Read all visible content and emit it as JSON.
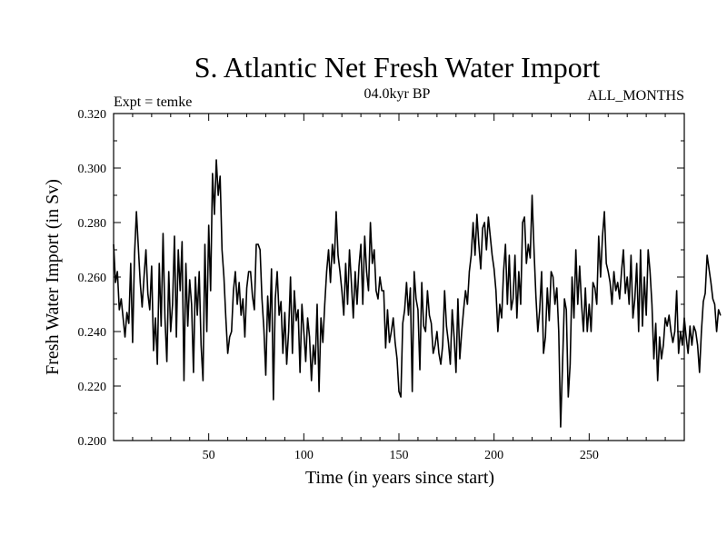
{
  "chart_data": {
    "type": "line",
    "title": "S. Atlantic Net Fresh Water Import",
    "subtitle_left": "Expt = temke",
    "subtitle_center": "04.0kyr BP",
    "subtitle_right": "ALL_MONTHS",
    "xlabel": "Time (in years since start)",
    "ylabel": "Fresh Water Import (in Sv)",
    "xlim": [
      0,
      300
    ],
    "ylim": [
      0.2,
      0.32
    ],
    "x_ticks": [
      50,
      100,
      150,
      200,
      250
    ],
    "x_tick_labels": [
      "50",
      "100",
      "150",
      "200",
      "250"
    ],
    "y_ticks": [
      0.2,
      0.22,
      0.24,
      0.26,
      0.28,
      0.3,
      0.32
    ],
    "y_tick_labels": [
      "0.200",
      "0.220",
      "0.240",
      "0.260",
      "0.280",
      "0.300",
      "0.320"
    ],
    "series": [
      {
        "name": "Fresh Water Import",
        "x_start": 0,
        "x_step": 1,
        "values": [
          0.272,
          0.258,
          0.262,
          0.248,
          0.252,
          0.245,
          0.238,
          0.247,
          0.243,
          0.265,
          0.236,
          0.268,
          0.284,
          0.271,
          0.258,
          0.249,
          0.26,
          0.27,
          0.254,
          0.248,
          0.264,
          0.233,
          0.245,
          0.228,
          0.265,
          0.242,
          0.276,
          0.245,
          0.229,
          0.262,
          0.24,
          0.25,
          0.275,
          0.238,
          0.27,
          0.255,
          0.273,
          0.222,
          0.265,
          0.242,
          0.259,
          0.25,
          0.225,
          0.26,
          0.246,
          0.262,
          0.235,
          0.222,
          0.272,
          0.24,
          0.279,
          0.255,
          0.298,
          0.283,
          0.303,
          0.29,
          0.297,
          0.27,
          0.26,
          0.245,
          0.232,
          0.238,
          0.24,
          0.255,
          0.262,
          0.25,
          0.258,
          0.246,
          0.252,
          0.238,
          0.256,
          0.262,
          0.262,
          0.253,
          0.248,
          0.272,
          0.272,
          0.27,
          0.252,
          0.241,
          0.224,
          0.253,
          0.24,
          0.263,
          0.215,
          0.252,
          0.262,
          0.246,
          0.251,
          0.232,
          0.247,
          0.228,
          0.24,
          0.26,
          0.232,
          0.255,
          0.244,
          0.248,
          0.225,
          0.25,
          0.24,
          0.229,
          0.245,
          0.238,
          0.222,
          0.235,
          0.228,
          0.25,
          0.218,
          0.245,
          0.236,
          0.25,
          0.262,
          0.27,
          0.258,
          0.272,
          0.265,
          0.284,
          0.268,
          0.262,
          0.255,
          0.246,
          0.265,
          0.25,
          0.27,
          0.258,
          0.245,
          0.262,
          0.25,
          0.264,
          0.272,
          0.25,
          0.275,
          0.262,
          0.255,
          0.28,
          0.265,
          0.27,
          0.255,
          0.252,
          0.26,
          0.255,
          0.255,
          0.234,
          0.248,
          0.236,
          0.24,
          0.245,
          0.236,
          0.23,
          0.218,
          0.216,
          0.243,
          0.248,
          0.258,
          0.246,
          0.256,
          0.218,
          0.262,
          0.252,
          0.248,
          0.226,
          0.258,
          0.242,
          0.24,
          0.255,
          0.246,
          0.243,
          0.232,
          0.235,
          0.24,
          0.232,
          0.228,
          0.235,
          0.255,
          0.242,
          0.236,
          0.228,
          0.248,
          0.238,
          0.225,
          0.252,
          0.23,
          0.24,
          0.248,
          0.255,
          0.25,
          0.262,
          0.268,
          0.28,
          0.268,
          0.283,
          0.272,
          0.263,
          0.278,
          0.28,
          0.27,
          0.282,
          0.275,
          0.268,
          0.263,
          0.255,
          0.24,
          0.25,
          0.245,
          0.262,
          0.272,
          0.25,
          0.268,
          0.248,
          0.252,
          0.268,
          0.245,
          0.262,
          0.25,
          0.28,
          0.282,
          0.265,
          0.272,
          0.267,
          0.29,
          0.27,
          0.253,
          0.24,
          0.248,
          0.262,
          0.232,
          0.238,
          0.256,
          0.244,
          0.262,
          0.26,
          0.25,
          0.256,
          0.24,
          0.205,
          0.228,
          0.252,
          0.248,
          0.216,
          0.228,
          0.26,
          0.245,
          0.27,
          0.25,
          0.264,
          0.25,
          0.24,
          0.256,
          0.24,
          0.25,
          0.24,
          0.258,
          0.256,
          0.25,
          0.275,
          0.26,
          0.275,
          0.284,
          0.265,
          0.262,
          0.258,
          0.25,
          0.262,
          0.255,
          0.258,
          0.252,
          0.262,
          0.27,
          0.254,
          0.26,
          0.25,
          0.268,
          0.245,
          0.252,
          0.265,
          0.24,
          0.27,
          0.242,
          0.26,
          0.246,
          0.27,
          0.262,
          0.25,
          0.23,
          0.243,
          0.222,
          0.238,
          0.23,
          0.235,
          0.245,
          0.242,
          0.246,
          0.24,
          0.236,
          0.24,
          0.255,
          0.232,
          0.24,
          0.235,
          0.245,
          0.238,
          0.232,
          0.242,
          0.235,
          0.242,
          0.24,
          0.235,
          0.225,
          0.24,
          0.251,
          0.254,
          0.268,
          0.263,
          0.258,
          0.252,
          0.25,
          0.24,
          0.248,
          0.246
        ]
      }
    ]
  }
}
